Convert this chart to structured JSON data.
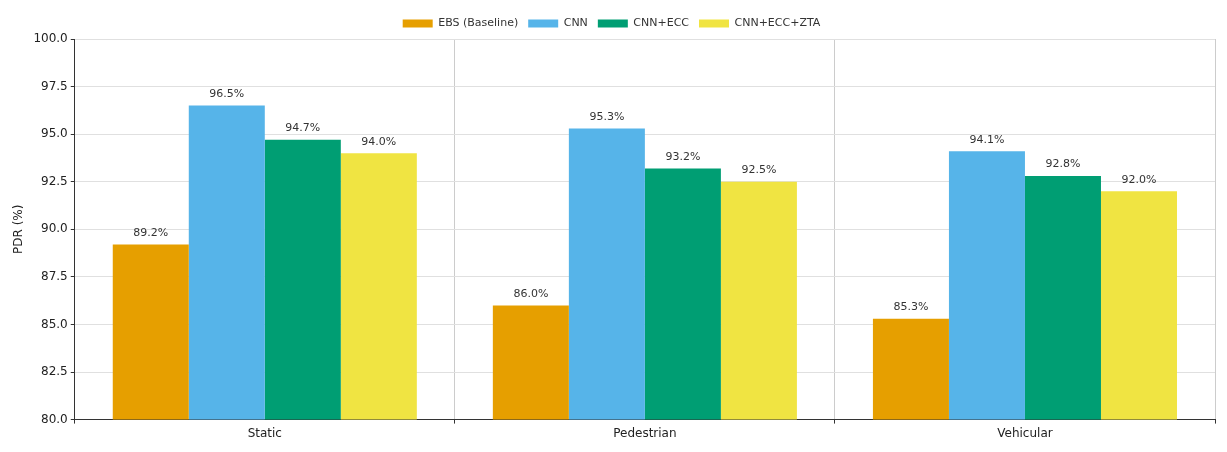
{
  "chart_data": {
    "type": "bar",
    "ylabel": "PDR (%)",
    "categories": [
      "Static",
      "Pedestrian",
      "Vehicular"
    ],
    "series": [
      {
        "name": "EBS (Baseline)",
        "color": "#e69f00",
        "values": [
          89.2,
          86.0,
          85.3
        ],
        "value_labels": [
          "89.2%",
          "86.0%",
          "85.3%"
        ]
      },
      {
        "name": "CNN",
        "color": "#56b4e9",
        "values": [
          96.5,
          95.3,
          94.1
        ],
        "value_labels": [
          "96.5%",
          "95.3%",
          "94.1%"
        ]
      },
      {
        "name": "CNN+ECC",
        "color": "#009e73",
        "values": [
          94.7,
          93.2,
          92.8
        ],
        "value_labels": [
          "94.7%",
          "93.2%",
          "92.8%"
        ]
      },
      {
        "name": "CNN+ECC+ZTA",
        "color": "#f0e442",
        "values": [
          94.0,
          92.5,
          92.0
        ],
        "value_labels": [
          "94.0%",
          "92.5%",
          "92.0%"
        ]
      }
    ],
    "ylim": [
      80,
      100
    ],
    "yticks": [
      {
        "value": 80,
        "label": "80.0"
      },
      {
        "value": 82.5,
        "label": "82.5"
      },
      {
        "value": 85,
        "label": "85.0"
      },
      {
        "value": 87.5,
        "label": "87.5"
      },
      {
        "value": 90,
        "label": "90.0"
      },
      {
        "value": 92.5,
        "label": "92.5"
      },
      {
        "value": 95,
        "label": "95.0"
      },
      {
        "value": 97.5,
        "label": "97.5"
      },
      {
        "value": 100,
        "label": "100.0"
      }
    ],
    "grid": true,
    "legend": "top"
  }
}
